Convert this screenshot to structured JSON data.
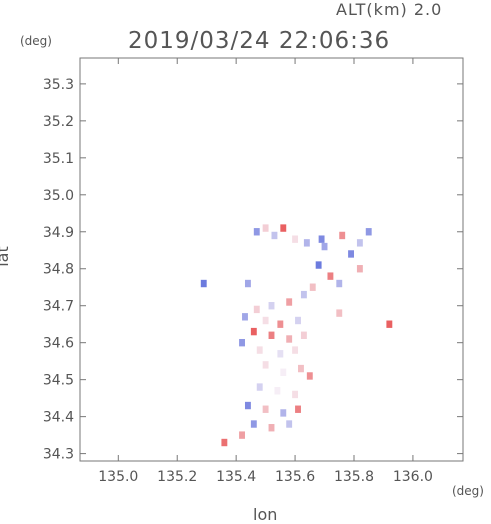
{
  "header": {
    "alt_label": "ALT(km)  2.0",
    "timestamp": "2019/03/24  22:06:36"
  },
  "axes": {
    "x_label": "lon",
    "y_label": "lat",
    "x_unit": "(deg)",
    "y_unit": "(deg)"
  },
  "chart_data": {
    "type": "heatmap",
    "xlim": [
      134.87,
      136.17
    ],
    "ylim": [
      34.28,
      35.37
    ],
    "x_ticks": [
      135.0,
      135.2,
      135.4,
      135.6,
      135.8,
      136.0
    ],
    "x_tick_labels": [
      "135.0",
      "135.2",
      "135.4",
      "135.6",
      "135.8",
      "136.0"
    ],
    "y_ticks": [
      34.3,
      34.4,
      34.5,
      34.6,
      34.7,
      34.8,
      34.9,
      35.0,
      35.1,
      35.2,
      35.3
    ],
    "y_tick_labels": [
      "34.3",
      "34.4",
      "34.5",
      "34.6",
      "34.7",
      "34.8",
      "34.9",
      "35.0",
      "35.1",
      "35.2",
      "35.3"
    ],
    "grid": false,
    "colors": {
      "positive": "#e85050",
      "negative": "#4a5ed8",
      "neutral": "#f6eef6"
    },
    "cells": [
      {
        "lon": 135.47,
        "lat": 34.9,
        "v": -0.6
      },
      {
        "lon": 135.5,
        "lat": 34.91,
        "v": 0.2
      },
      {
        "lon": 135.53,
        "lat": 34.89,
        "v": -0.3
      },
      {
        "lon": 135.56,
        "lat": 34.91,
        "v": 0.9
      },
      {
        "lon": 135.6,
        "lat": 34.88,
        "v": 0.1
      },
      {
        "lon": 135.64,
        "lat": 34.87,
        "v": -0.4
      },
      {
        "lon": 135.7,
        "lat": 34.86,
        "v": -0.5
      },
      {
        "lon": 135.76,
        "lat": 34.89,
        "v": 0.6
      },
      {
        "lon": 135.79,
        "lat": 34.84,
        "v": -0.7
      },
      {
        "lon": 135.82,
        "lat": 34.87,
        "v": -0.3
      },
      {
        "lon": 135.85,
        "lat": 34.9,
        "v": -0.6
      },
      {
        "lon": 135.82,
        "lat": 34.8,
        "v": 0.4
      },
      {
        "lon": 135.68,
        "lat": 34.81,
        "v": -0.8
      },
      {
        "lon": 135.72,
        "lat": 34.78,
        "v": 0.7
      },
      {
        "lon": 135.75,
        "lat": 34.76,
        "v": -0.4
      },
      {
        "lon": 135.66,
        "lat": 34.75,
        "v": 0.3
      },
      {
        "lon": 135.63,
        "lat": 34.73,
        "v": -0.3
      },
      {
        "lon": 135.58,
        "lat": 34.71,
        "v": 0.5
      },
      {
        "lon": 135.52,
        "lat": 34.7,
        "v": -0.2
      },
      {
        "lon": 135.47,
        "lat": 34.69,
        "v": 0.2
      },
      {
        "lon": 135.43,
        "lat": 34.67,
        "v": -0.5
      },
      {
        "lon": 135.5,
        "lat": 34.66,
        "v": 0.1
      },
      {
        "lon": 135.55,
        "lat": 34.65,
        "v": 0.6
      },
      {
        "lon": 135.61,
        "lat": 34.66,
        "v": -0.2
      },
      {
        "lon": 135.46,
        "lat": 34.63,
        "v": 0.9
      },
      {
        "lon": 135.52,
        "lat": 34.62,
        "v": 0.7
      },
      {
        "lon": 135.58,
        "lat": 34.61,
        "v": 0.4
      },
      {
        "lon": 135.63,
        "lat": 34.62,
        "v": 0.2
      },
      {
        "lon": 135.42,
        "lat": 34.6,
        "v": -0.6
      },
      {
        "lon": 135.48,
        "lat": 34.58,
        "v": 0.1
      },
      {
        "lon": 135.55,
        "lat": 34.57,
        "v": -0.1
      },
      {
        "lon": 135.6,
        "lat": 34.58,
        "v": 0.1
      },
      {
        "lon": 135.5,
        "lat": 34.54,
        "v": 0.1
      },
      {
        "lon": 135.56,
        "lat": 34.52,
        "v": 0.0
      },
      {
        "lon": 135.62,
        "lat": 34.53,
        "v": 0.3
      },
      {
        "lon": 135.65,
        "lat": 34.51,
        "v": 0.6
      },
      {
        "lon": 135.48,
        "lat": 34.48,
        "v": -0.2
      },
      {
        "lon": 135.54,
        "lat": 34.47,
        "v": 0.0
      },
      {
        "lon": 135.6,
        "lat": 34.46,
        "v": 0.1
      },
      {
        "lon": 135.44,
        "lat": 34.43,
        "v": -0.7
      },
      {
        "lon": 135.5,
        "lat": 34.42,
        "v": 0.3
      },
      {
        "lon": 135.56,
        "lat": 34.41,
        "v": -0.4
      },
      {
        "lon": 135.61,
        "lat": 34.42,
        "v": 0.7
      },
      {
        "lon": 135.46,
        "lat": 34.38,
        "v": -0.6
      },
      {
        "lon": 135.52,
        "lat": 34.37,
        "v": 0.4
      },
      {
        "lon": 135.58,
        "lat": 34.38,
        "v": -0.3
      },
      {
        "lon": 135.42,
        "lat": 34.35,
        "v": 0.5
      },
      {
        "lon": 135.36,
        "lat": 34.33,
        "v": 0.8
      },
      {
        "lon": 135.92,
        "lat": 34.65,
        "v": 0.9
      },
      {
        "lon": 135.29,
        "lat": 34.76,
        "v": -0.8
      },
      {
        "lon": 135.44,
        "lat": 34.76,
        "v": -0.5
      },
      {
        "lon": 135.69,
        "lat": 34.88,
        "v": -0.7
      },
      {
        "lon": 135.75,
        "lat": 34.68,
        "v": 0.3
      }
    ]
  }
}
